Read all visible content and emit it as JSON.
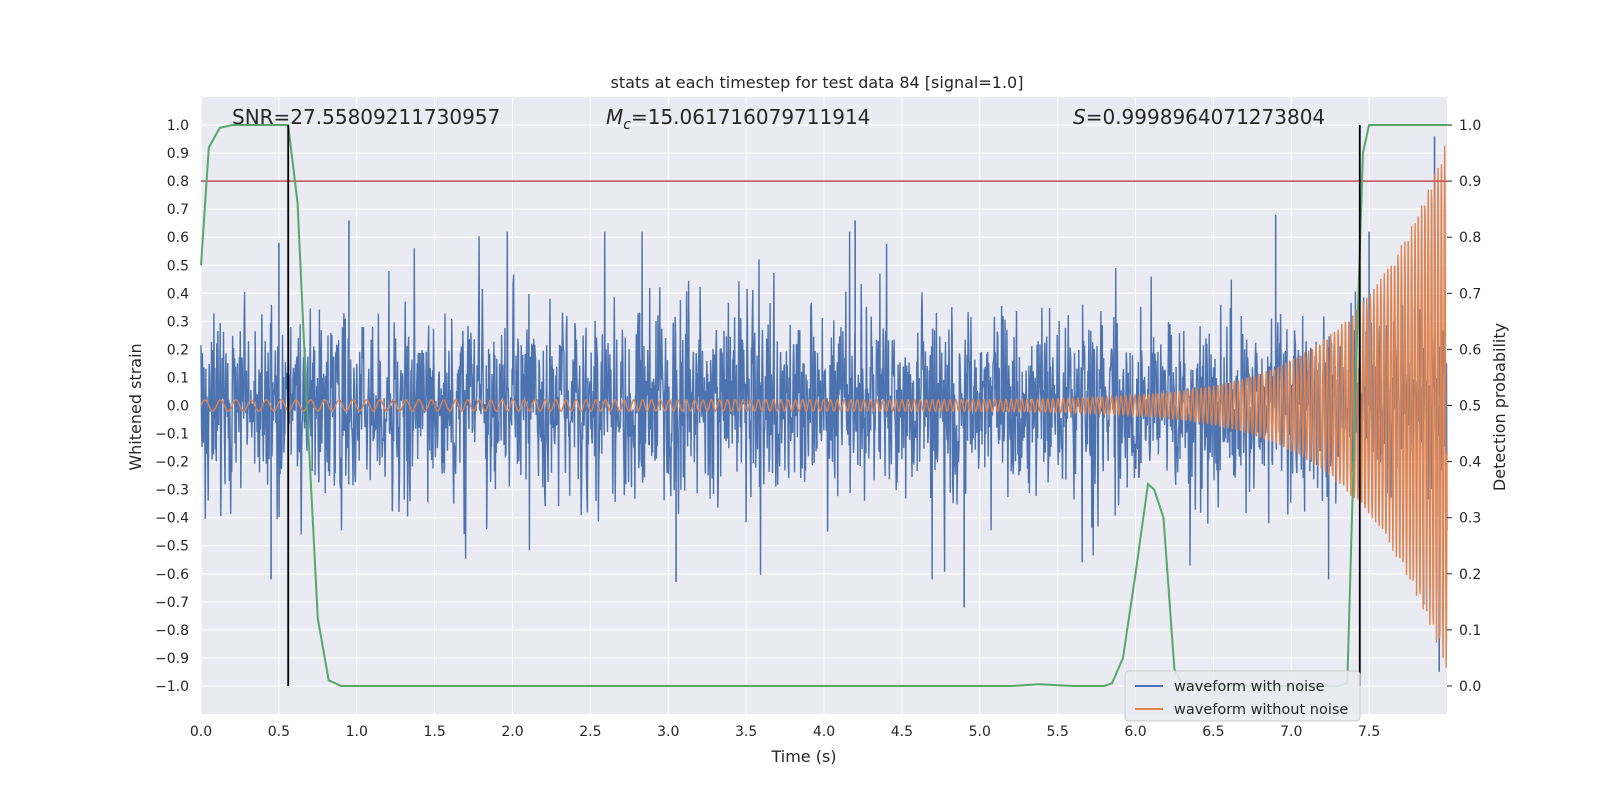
{
  "chart_data": {
    "type": "line",
    "title": "stats at each timestep for test data 84 [signal=1.0]",
    "xlabel": "Time (s)",
    "ylabel": "Whitened strain",
    "y2label": "Detection probability",
    "xlim": [
      0.0,
      8.0
    ],
    "ylim": [
      -1.1,
      1.1
    ],
    "y2lim": [
      -0.05,
      1.05
    ],
    "xticks": [
      "0.0",
      "0.5",
      "1.0",
      "1.5",
      "2.0",
      "2.5",
      "3.0",
      "3.5",
      "4.0",
      "4.5",
      "5.0",
      "5.5",
      "6.0",
      "6.5",
      "7.0",
      "7.5"
    ],
    "yticks": [
      "1.0",
      "0.9",
      "0.8",
      "0.7",
      "0.6",
      "0.5",
      "0.4",
      "0.3",
      "0.2",
      "0.1",
      "0.0",
      "-0.1",
      "-0.2",
      "-0.3",
      "-0.4",
      "-0.5",
      "-0.6",
      "-0.7",
      "-0.8",
      "-0.9",
      "-1.0"
    ],
    "y2ticks": [
      "1.0",
      "0.9",
      "0.8",
      "0.7",
      "0.6",
      "0.5",
      "0.4",
      "0.3",
      "0.2",
      "0.1",
      "0.0"
    ],
    "annotations": {
      "snr": "SNR=27.55809211730957",
      "mc_symbol": "M",
      "mc_sub": "c",
      "mc_value": "=15.061716079711914",
      "s_symbol": "S",
      "s_value": "=0.9998964071273804"
    },
    "threshold": {
      "y2": 0.9,
      "color": "#c44e52"
    },
    "vlines": [
      0.56,
      7.44
    ],
    "series": [
      {
        "name": "waveform with noise",
        "color": "#4c72b0",
        "kind": "noise",
        "envelope_typical": 0.3,
        "extreme_peaks": [
          [
            0.5,
            0.58
          ],
          [
            0.95,
            0.66
          ],
          [
            4.2,
            0.66
          ],
          [
            6.9,
            0.68
          ],
          [
            7.5,
            0.62
          ],
          [
            7.92,
            0.96
          ],
          [
            0.45,
            -0.62
          ],
          [
            3.05,
            -0.63
          ],
          [
            4.9,
            -0.72
          ],
          [
            7.85,
            -0.71
          ],
          [
            7.95,
            -0.95
          ]
        ]
      },
      {
        "name": "waveform without noise",
        "color": "#dd8452",
        "kind": "chirp",
        "start_amplitude": 0.02,
        "end_amplitude": 0.95,
        "start_frequency": 10,
        "end_frequency": 48
      },
      {
        "name": "Detection probability",
        "color": "#55a868",
        "axis": "right",
        "x": [
          0.0,
          0.05,
          0.12,
          0.2,
          0.3,
          0.4,
          0.5,
          0.56,
          0.62,
          0.68,
          0.75,
          0.82,
          0.9,
          1.0,
          2.0,
          3.0,
          4.0,
          5.0,
          5.2,
          5.38,
          5.6,
          5.8,
          5.85,
          5.92,
          6.0,
          6.08,
          6.12,
          6.18,
          6.25,
          6.3,
          6.5,
          7.0,
          7.3,
          7.36,
          7.42,
          7.46,
          7.5,
          7.55,
          8.0
        ],
        "y": [
          0.75,
          0.96,
          0.995,
          1.0,
          1.0,
          1.0,
          1.0,
          1.0,
          0.86,
          0.5,
          0.12,
          0.01,
          0.0,
          0.0,
          0.0,
          0.0,
          0.0,
          0.0,
          0.0,
          0.003,
          0.0,
          0.0,
          0.005,
          0.05,
          0.2,
          0.36,
          0.35,
          0.3,
          0.03,
          0.003,
          0.0,
          0.0,
          0.0,
          0.005,
          0.6,
          0.95,
          1.0,
          1.0,
          1.0
        ]
      }
    ],
    "legend": {
      "placement": "lower right",
      "entries": [
        "waveform with noise",
        "waveform without noise"
      ]
    },
    "colors": {
      "background": "#eaeaf2",
      "grid": "#ffffff",
      "vline": "#000000"
    }
  }
}
